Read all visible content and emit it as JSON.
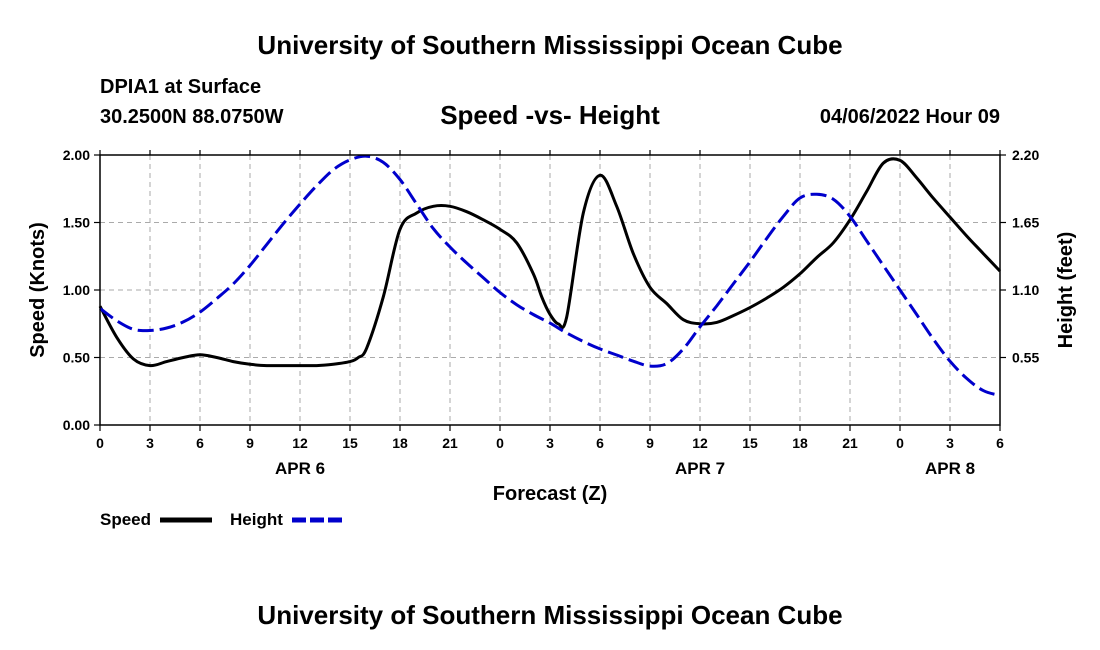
{
  "page": {
    "top_title": "University of Southern Mississippi Ocean Cube",
    "bottom_title": "University of Southern Mississippi Ocean Cube",
    "station": "DPIA1 at Surface",
    "coords": "30.2500N  88.0750W",
    "chart_title": "Speed -vs- Height",
    "date": "04/06/2022 Hour 09"
  },
  "colors": {
    "speed": "#000000",
    "height": "#0000cc",
    "grid": "#aaaaaa"
  },
  "chart_data": {
    "type": "line",
    "title": "Speed -vs- Height",
    "xlabel": "Forecast (Z)",
    "ylabel_left": "Speed (Knots)",
    "ylabel_right": "Height (feet)",
    "x_range": [
      0,
      54
    ],
    "x_tick_values": [
      0,
      3,
      6,
      9,
      12,
      15,
      18,
      21,
      24,
      27,
      30,
      33,
      36,
      39,
      42,
      45,
      48,
      51,
      54
    ],
    "x_tick_labels": [
      "0",
      "3",
      "6",
      "9",
      "12",
      "15",
      "18",
      "21",
      "0",
      "3",
      "6",
      "9",
      "12",
      "15",
      "18",
      "21",
      "0",
      "3",
      "6"
    ],
    "day_labels": [
      {
        "x": 12,
        "label": "APR 6"
      },
      {
        "x": 36,
        "label": "APR 7"
      },
      {
        "x": 51,
        "label": "APR 8"
      }
    ],
    "ylim_left": [
      0,
      2.0
    ],
    "y_left_ticks": [
      0.0,
      0.5,
      1.0,
      1.5,
      2.0
    ],
    "y_left_tick_labels": [
      "0.00",
      "0.50",
      "1.00",
      "1.50",
      "2.00"
    ],
    "ylim_right": [
      0.0,
      2.2
    ],
    "y_right_ticks": [
      0.55,
      1.1,
      1.65,
      2.2
    ],
    "y_right_tick_labels": [
      "0.55",
      "1.10",
      "1.65",
      "2.20"
    ],
    "grid": true,
    "series": [
      {
        "name": "Speed",
        "axis": "left",
        "style": "solid",
        "x": [
          0,
          1,
          2,
          3,
          4,
          5,
          6,
          7,
          8,
          9,
          10,
          11,
          12,
          13,
          14,
          15,
          15.5,
          16,
          17,
          18,
          19,
          20,
          21,
          22,
          23,
          24,
          25,
          26,
          26.5,
          27,
          27.5,
          28,
          29,
          30,
          31,
          32,
          33,
          34,
          35,
          36,
          37,
          38,
          39,
          40,
          41,
          42,
          43,
          44,
          45,
          46,
          47,
          48,
          49,
          50,
          51,
          52,
          53,
          54
        ],
        "values": [
          0.88,
          0.65,
          0.49,
          0.44,
          0.47,
          0.5,
          0.52,
          0.5,
          0.47,
          0.45,
          0.44,
          0.44,
          0.44,
          0.44,
          0.45,
          0.47,
          0.5,
          0.57,
          0.95,
          1.45,
          1.57,
          1.62,
          1.62,
          1.58,
          1.52,
          1.45,
          1.35,
          1.12,
          0.95,
          0.82,
          0.75,
          0.8,
          1.57,
          1.85,
          1.62,
          1.27,
          1.02,
          0.9,
          0.78,
          0.75,
          0.76,
          0.81,
          0.87,
          0.94,
          1.02,
          1.12,
          1.24,
          1.35,
          1.52,
          1.73,
          1.94,
          1.96,
          1.83,
          1.68,
          1.54,
          1.4,
          1.27,
          1.14
        ]
      },
      {
        "name": "Height",
        "axis": "right",
        "style": "dashed",
        "x": [
          0,
          1,
          2,
          3,
          4,
          5,
          6,
          7,
          8,
          9,
          10,
          11,
          12,
          13,
          14,
          15,
          16,
          17,
          18,
          19,
          20,
          21,
          22,
          23,
          24,
          25,
          26,
          27,
          28,
          29,
          30,
          31,
          32,
          33,
          34,
          35,
          36,
          37,
          38,
          39,
          40,
          41,
          42,
          43,
          44,
          45,
          46,
          47,
          48,
          49,
          50,
          51,
          52,
          53,
          54
        ],
        "values": [
          0.95,
          0.85,
          0.78,
          0.77,
          0.79,
          0.84,
          0.92,
          1.03,
          1.15,
          1.3,
          1.47,
          1.64,
          1.8,
          1.95,
          2.08,
          2.16,
          2.19,
          2.14,
          2.0,
          1.8,
          1.6,
          1.45,
          1.32,
          1.2,
          1.08,
          0.98,
          0.9,
          0.83,
          0.75,
          0.68,
          0.62,
          0.57,
          0.52,
          0.48,
          0.5,
          0.62,
          0.8,
          0.97,
          1.15,
          1.33,
          1.52,
          1.7,
          1.85,
          1.88,
          1.84,
          1.7,
          1.5,
          1.3,
          1.1,
          0.9,
          0.7,
          0.52,
          0.38,
          0.28,
          0.24
        ]
      }
    ]
  }
}
